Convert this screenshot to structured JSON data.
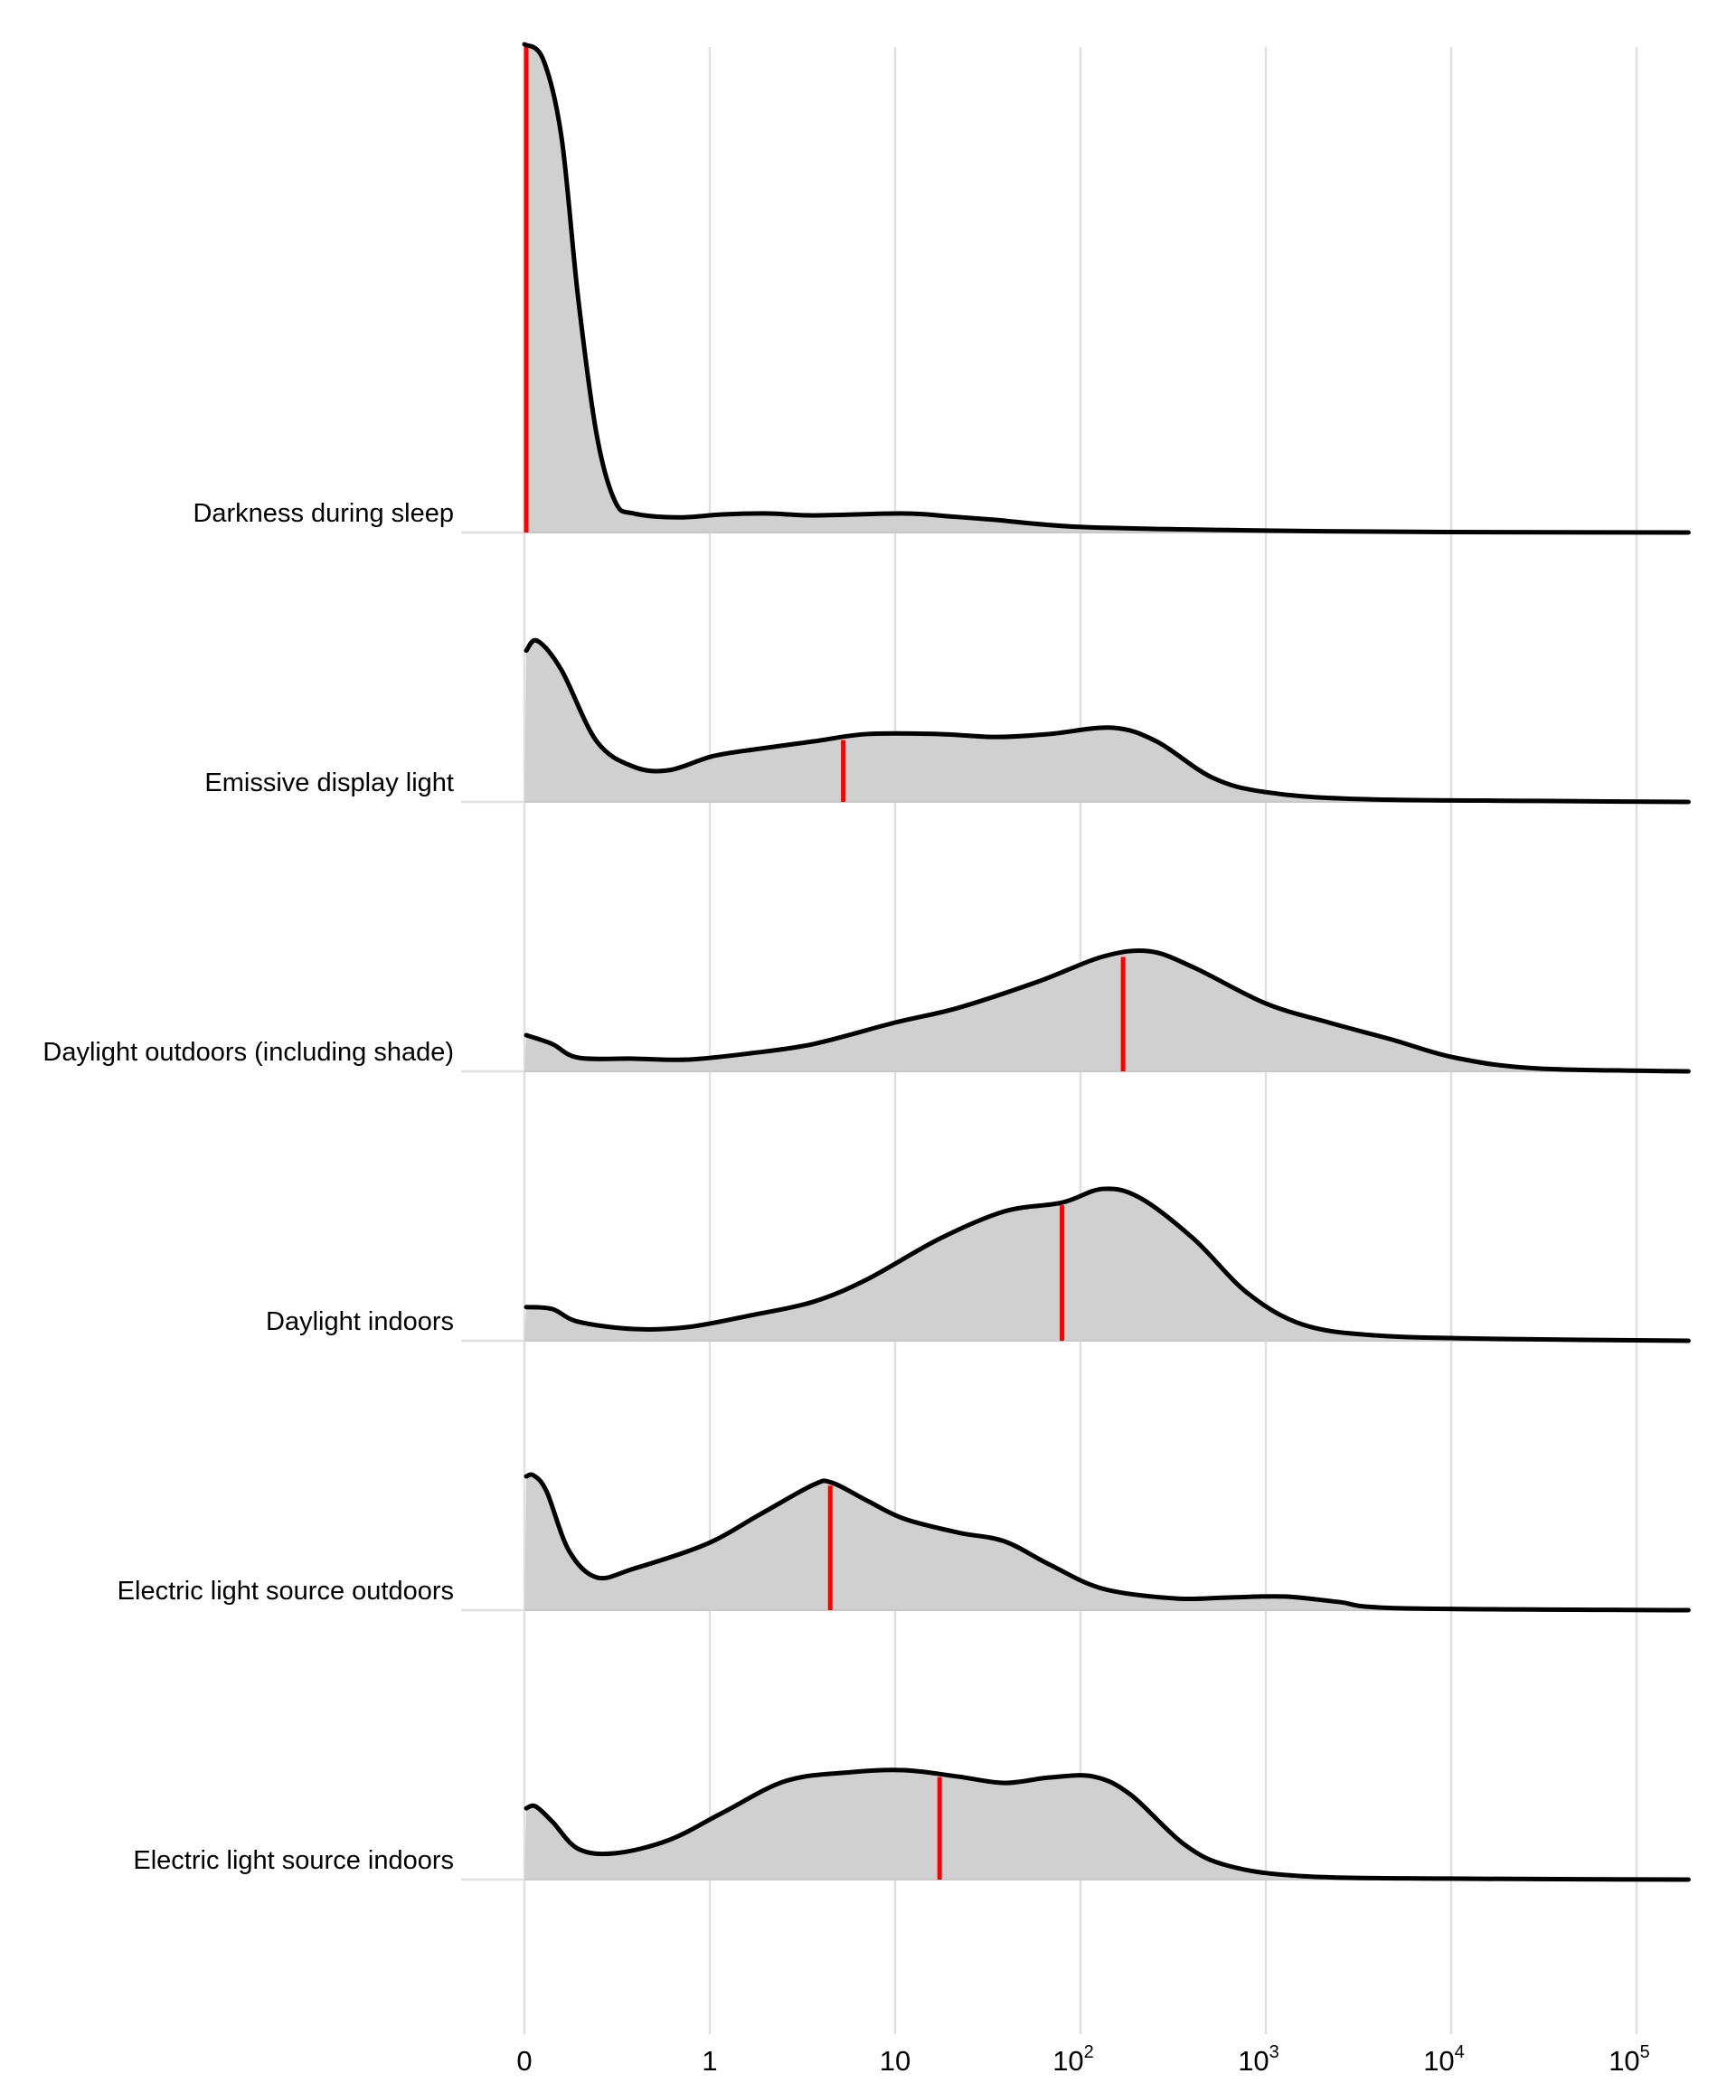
{
  "chart_data": {
    "type": "area",
    "subtype": "ridgeline-density",
    "title": "",
    "xlabel": "",
    "ylabel": "",
    "x_scale": "pseudo-log: position t where t = lux for lux <= 1, t = 1 + log10(lux) for lux >= 1",
    "x_range_t": [
      0,
      6.28
    ],
    "grid": "vertical gridlines at ticks",
    "x_ticks": [
      {
        "t": 0,
        "base": "0",
        "exp": ""
      },
      {
        "t": 1,
        "base": "1",
        "exp": ""
      },
      {
        "t": 2,
        "base": "10",
        "exp": ""
      },
      {
        "t": 3,
        "base": "10",
        "exp": "2"
      },
      {
        "t": 4,
        "base": "10",
        "exp": "3"
      },
      {
        "t": 5,
        "base": "10",
        "exp": "4"
      },
      {
        "t": 6,
        "base": "10",
        "exp": "5"
      }
    ],
    "density_units": "relative density (fraction of tallest ridge peak)",
    "colors": {
      "fill": "#d0d0d0",
      "line": "#000000",
      "median": "#ff0000",
      "grid": "#e0e0e0"
    },
    "series": [
      {
        "name": "Darkness during sleep",
        "median_lux": 0,
        "median_t": 0,
        "points": [
          [
            0,
            1.0
          ],
          [
            0.1,
            0.97
          ],
          [
            0.2,
            0.81
          ],
          [
            0.29,
            0.48
          ],
          [
            0.39,
            0.2
          ],
          [
            0.49,
            0.063
          ],
          [
            0.59,
            0.039
          ],
          [
            0.83,
            0.031
          ],
          [
            1.07,
            0.037
          ],
          [
            1.32,
            0.039
          ],
          [
            1.56,
            0.035
          ],
          [
            2.05,
            0.039
          ],
          [
            2.29,
            0.033
          ],
          [
            2.54,
            0.026
          ],
          [
            3.02,
            0.011
          ],
          [
            4.0,
            0.004
          ],
          [
            4.98,
            0.001
          ],
          [
            6.28,
            0
          ]
        ]
      },
      {
        "name": "Emissive display light",
        "median_lux": 5.3,
        "median_t": 1.72,
        "points": [
          [
            0.01,
            0.31
          ],
          [
            0.07,
            0.33
          ],
          [
            0.2,
            0.27
          ],
          [
            0.39,
            0.124
          ],
          [
            0.59,
            0.072
          ],
          [
            0.78,
            0.065
          ],
          [
            1.02,
            0.094
          ],
          [
            1.27,
            0.109
          ],
          [
            1.56,
            0.124
          ],
          [
            1.85,
            0.139
          ],
          [
            2.24,
            0.139
          ],
          [
            2.54,
            0.133
          ],
          [
            2.83,
            0.139
          ],
          [
            3.17,
            0.152
          ],
          [
            3.41,
            0.124
          ],
          [
            3.71,
            0.05
          ],
          [
            4.0,
            0.02
          ],
          [
            4.49,
            0.006
          ],
          [
            5.46,
            0.002
          ],
          [
            6.28,
            0
          ]
        ]
      },
      {
        "name": "Daylight outdoors (including shade)",
        "median_lux": 170,
        "median_t": 3.23,
        "points": [
          [
            0.01,
            0.074
          ],
          [
            0.15,
            0.056
          ],
          [
            0.29,
            0.028
          ],
          [
            0.59,
            0.026
          ],
          [
            0.88,
            0.024
          ],
          [
            1.22,
            0.037
          ],
          [
            1.56,
            0.056
          ],
          [
            2.0,
            0.1
          ],
          [
            2.34,
            0.13
          ],
          [
            2.78,
            0.185
          ],
          [
            3.12,
            0.235
          ],
          [
            3.37,
            0.246
          ],
          [
            3.61,
            0.213
          ],
          [
            4.0,
            0.139
          ],
          [
            4.34,
            0.1
          ],
          [
            4.68,
            0.065
          ],
          [
            5.02,
            0.028
          ],
          [
            5.46,
            0.006
          ],
          [
            6.28,
            0
          ]
        ]
      },
      {
        "name": "Daylight indoors",
        "median_lux": 80,
        "median_t": 2.9,
        "points": [
          [
            0.01,
            0.069
          ],
          [
            0.15,
            0.065
          ],
          [
            0.29,
            0.039
          ],
          [
            0.59,
            0.024
          ],
          [
            0.88,
            0.028
          ],
          [
            1.22,
            0.052
          ],
          [
            1.56,
            0.08
          ],
          [
            1.85,
            0.126
          ],
          [
            2.24,
            0.209
          ],
          [
            2.59,
            0.265
          ],
          [
            2.9,
            0.283
          ],
          [
            3.12,
            0.311
          ],
          [
            3.32,
            0.293
          ],
          [
            3.61,
            0.209
          ],
          [
            3.9,
            0.098
          ],
          [
            4.2,
            0.033
          ],
          [
            4.59,
            0.011
          ],
          [
            5.22,
            0.004
          ],
          [
            6.28,
            0
          ]
        ]
      },
      {
        "name": "Electric light source outdoors",
        "median_lux": 4.5,
        "median_t": 1.65,
        "points": [
          [
            0.01,
            0.274
          ],
          [
            0.05,
            0.276
          ],
          [
            0.12,
            0.243
          ],
          [
            0.24,
            0.122
          ],
          [
            0.39,
            0.067
          ],
          [
            0.59,
            0.085
          ],
          [
            0.98,
            0.135
          ],
          [
            1.27,
            0.196
          ],
          [
            1.56,
            0.257
          ],
          [
            1.66,
            0.261
          ],
          [
            1.85,
            0.224
          ],
          [
            2.05,
            0.187
          ],
          [
            2.34,
            0.159
          ],
          [
            2.59,
            0.141
          ],
          [
            2.83,
            0.094
          ],
          [
            3.12,
            0.044
          ],
          [
            3.51,
            0.024
          ],
          [
            3.8,
            0.026
          ],
          [
            4.1,
            0.028
          ],
          [
            4.39,
            0.017
          ],
          [
            4.73,
            0.004
          ],
          [
            6.28,
            0
          ]
        ]
      },
      {
        "name": "Electric light source indoors",
        "median_lux": 17,
        "median_t": 2.24,
        "points": [
          [
            0.01,
            0.146
          ],
          [
            0.06,
            0.15
          ],
          [
            0.15,
            0.119
          ],
          [
            0.29,
            0.063
          ],
          [
            0.49,
            0.054
          ],
          [
            0.78,
            0.081
          ],
          [
            1.07,
            0.137
          ],
          [
            1.41,
            0.202
          ],
          [
            1.76,
            0.22
          ],
          [
            2.05,
            0.224
          ],
          [
            2.34,
            0.211
          ],
          [
            2.59,
            0.198
          ],
          [
            2.83,
            0.209
          ],
          [
            3.07,
            0.211
          ],
          [
            3.27,
            0.174
          ],
          [
            3.56,
            0.072
          ],
          [
            3.8,
            0.028
          ],
          [
            4.2,
            0.007
          ],
          [
            4.98,
            0.002
          ],
          [
            6.28,
            0
          ]
        ]
      }
    ]
  }
}
